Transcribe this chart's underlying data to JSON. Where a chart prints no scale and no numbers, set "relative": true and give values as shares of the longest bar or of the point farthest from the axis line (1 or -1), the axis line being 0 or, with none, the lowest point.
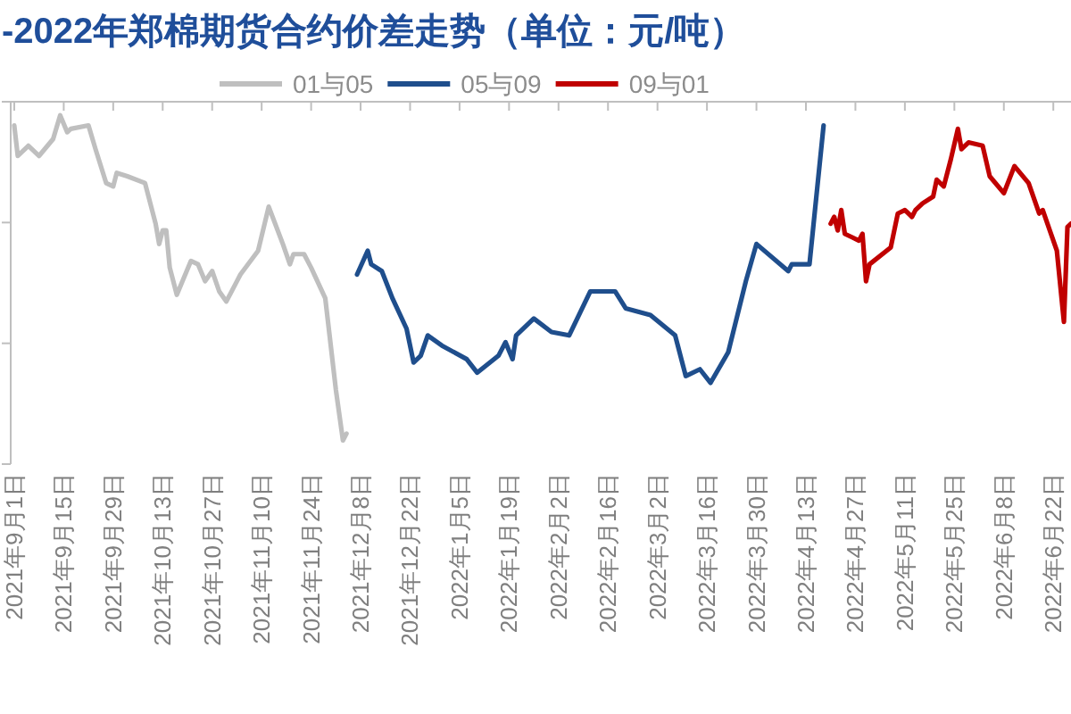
{
  "chart_data": {
    "type": "line",
    "title": "-2022年郑棉期货合约价差走势（单位：元/吨）",
    "relative": true,
    "legend": "top",
    "xlim": [
      "2021-08-31",
      "2022-06-27"
    ],
    "xticks": [
      {
        "value": "2021-09-01",
        "label": "2021年9月1日"
      },
      {
        "value": "2021-09-15",
        "label": "2021年9月15日"
      },
      {
        "value": "2021-09-29",
        "label": "2021年9月29日"
      },
      {
        "value": "2021-10-13",
        "label": "2021年10月13日"
      },
      {
        "value": "2021-10-27",
        "label": "2021年10月27日"
      },
      {
        "value": "2021-11-10",
        "label": "2021年11月10日"
      },
      {
        "value": "2021-11-24",
        "label": "2021年11月24日"
      },
      {
        "value": "2021-12-08",
        "label": "2021年12月8日"
      },
      {
        "value": "2021-12-22",
        "label": "2021年12月22日"
      },
      {
        "value": "2022-01-05",
        "label": "2022年1月5日"
      },
      {
        "value": "2022-01-19",
        "label": "2022年1月19日"
      },
      {
        "value": "2022-02-02",
        "label": "2022年2月2日"
      },
      {
        "value": "2022-02-16",
        "label": "2022年2月16日"
      },
      {
        "value": "2022-03-02",
        "label": "2022年3月2日"
      },
      {
        "value": "2022-03-16",
        "label": "2022年3月16日"
      },
      {
        "value": "2022-03-30",
        "label": "2022年3月30日"
      },
      {
        "value": "2022-04-13",
        "label": "2022年4月13日"
      },
      {
        "value": "2022-04-27",
        "label": "2022年4月27日"
      },
      {
        "value": "2022-05-11",
        "label": "2022年5月11日"
      },
      {
        "value": "2022-05-25",
        "label": "2022年5月25日"
      },
      {
        "value": "2022-06-08",
        "label": "2022年6月8日"
      },
      {
        "value": "2022-06-22",
        "label": "2022年6月22日"
      }
    ],
    "series": [
      {
        "name": "01与05",
        "color": "#bfbfbf",
        "x": [
          "2021-09-01",
          "2021-09-02",
          "2021-09-05",
          "2021-09-08",
          "2021-09-12",
          "2021-09-14",
          "2021-09-16",
          "2021-09-17",
          "2021-09-22",
          "2021-09-24",
          "2021-09-27",
          "2021-09-29",
          "2021-09-30",
          "2021-10-03",
          "2021-10-08",
          "2021-10-11",
          "2021-10-12",
          "2021-10-13",
          "2021-10-14",
          "2021-10-15",
          "2021-10-17",
          "2021-10-21",
          "2021-10-23",
          "2021-10-25",
          "2021-10-27",
          "2021-10-29",
          "2021-10-31",
          "2021-11-03",
          "2021-11-04",
          "2021-11-09",
          "2021-11-12",
          "2021-11-16",
          "2021-11-18",
          "2021-11-19",
          "2021-11-22",
          "2021-11-24",
          "2021-11-28",
          "2021-12-01",
          "2021-12-03",
          "2021-12-04"
        ],
        "values": [
          -0.07,
          -0.16,
          -0.13,
          -0.16,
          -0.11,
          -0.04,
          -0.09,
          -0.08,
          -0.07,
          -0.14,
          -0.24,
          -0.25,
          -0.21,
          -0.22,
          -0.24,
          -0.36,
          -0.42,
          -0.38,
          -0.38,
          -0.49,
          -0.57,
          -0.47,
          -0.48,
          -0.53,
          -0.5,
          -0.56,
          -0.59,
          -0.53,
          -0.51,
          -0.44,
          -0.31,
          -0.42,
          -0.48,
          -0.45,
          -0.45,
          -0.49,
          -0.58,
          -0.85,
          -1,
          -0.98
        ]
      },
      {
        "name": "05与09",
        "color": "#1f4e8c",
        "x": [
          "2021-12-07",
          "2021-12-10",
          "2021-12-11",
          "2021-12-14",
          "2021-12-17",
          "2021-12-21",
          "2021-12-23",
          "2021-12-25",
          "2021-12-27",
          "2021-12-31",
          "2022-01-07",
          "2022-01-10",
          "2022-01-16",
          "2022-01-18",
          "2022-01-20",
          "2022-01-21",
          "2022-01-26",
          "2022-01-31",
          "2022-02-05",
          "2022-02-11",
          "2022-02-18",
          "2022-02-21",
          "2022-02-28",
          "2022-03-07",
          "2022-03-10",
          "2022-03-14",
          "2022-03-17",
          "2022-03-22",
          "2022-03-27",
          "2022-03-30",
          "2022-04-08",
          "2022-04-09",
          "2022-04-13",
          "2022-04-14",
          "2022-04-18"
        ],
        "values": [
          -0.51,
          -0.44,
          -0.48,
          -0.5,
          -0.58,
          -0.67,
          -0.77,
          -0.75,
          -0.69,
          -0.72,
          -0.76,
          -0.8,
          -0.75,
          -0.71,
          -0.76,
          -0.69,
          -0.64,
          -0.68,
          -0.69,
          -0.56,
          -0.56,
          -0.61,
          -0.63,
          -0.69,
          -0.81,
          -0.79,
          -0.83,
          -0.74,
          -0.53,
          -0.42,
          -0.5,
          -0.48,
          -0.48,
          -0.48,
          -0.07
        ]
      },
      {
        "name": "09与01",
        "color": "#c00000",
        "x": [
          "2022-04-20",
          "2022-04-21",
          "2022-04-22",
          "2022-04-23",
          "2022-04-24",
          "2022-04-26",
          "2022-04-28",
          "2022-04-29",
          "2022-04-30",
          "2022-05-01",
          "2022-05-07",
          "2022-05-09",
          "2022-05-11",
          "2022-05-13",
          "2022-05-14",
          "2022-05-16",
          "2022-05-19",
          "2022-05-20",
          "2022-05-22",
          "2022-05-24",
          "2022-05-26",
          "2022-05-27",
          "2022-05-29",
          "2022-06-02",
          "2022-06-04",
          "2022-06-08",
          "2022-06-11",
          "2022-06-15",
          "2022-06-18",
          "2022-06-19",
          "2022-06-23",
          "2022-06-25",
          "2022-06-26",
          "2022-06-27"
        ],
        "values": [
          -0.36,
          -0.34,
          -0.38,
          -0.32,
          -0.39,
          -0.4,
          -0.41,
          -0.39,
          -0.53,
          -0.48,
          -0.43,
          -0.33,
          -0.32,
          -0.34,
          -0.32,
          -0.3,
          -0.28,
          -0.23,
          -0.25,
          -0.17,
          -0.08,
          -0.14,
          -0.12,
          -0.13,
          -0.22,
          -0.27,
          -0.19,
          -0.24,
          -0.33,
          -0.32,
          -0.44,
          -0.65,
          -0.37,
          -0.36
        ]
      }
    ]
  }
}
